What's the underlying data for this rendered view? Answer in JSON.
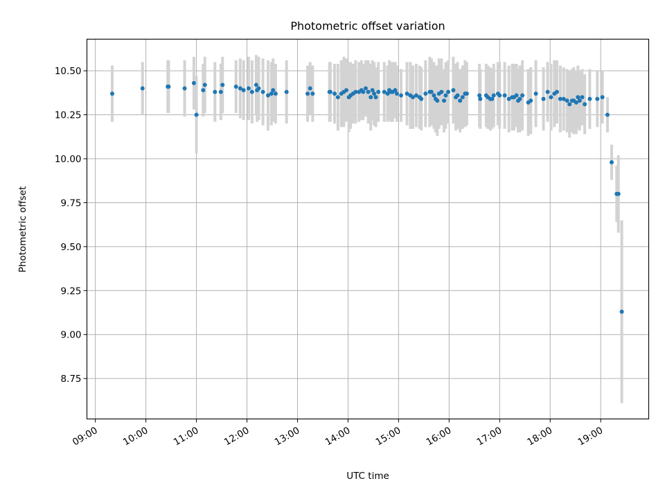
{
  "chart_data": {
    "type": "scatter",
    "title": "Photometric offset variation",
    "xlabel": "UTC time",
    "ylabel": "Photometric offset",
    "x_ticks": [
      "09:00",
      "10:00",
      "11:00",
      "12:00",
      "13:00",
      "14:00",
      "15:00",
      "16:00",
      "17:00",
      "18:00",
      "19:00"
    ],
    "y_ticks": [
      "8.75",
      "9.00",
      "9.25",
      "9.50",
      "9.75",
      "10.00",
      "10.25",
      "10.50"
    ],
    "xlim": [
      "08:50",
      "19:57"
    ],
    "ylim": [
      8.52,
      10.68
    ],
    "grid": true,
    "colors": {
      "point": "#1f77b4",
      "errorbar": "#d3d3d3"
    },
    "series": [
      {
        "x": [
          "09:20",
          "09:56",
          "10:26",
          "10:27",
          "10:46",
          "10:57",
          "11:00",
          "11:08",
          "11:10",
          "11:22",
          "11:29",
          "11:31",
          "11:47",
          "11:52",
          "11:56",
          "12:02",
          "12:06",
          "12:11",
          "12:12",
          "12:14",
          "12:19",
          "12:25",
          "12:29",
          "12:31",
          "12:34",
          "12:47",
          "13:12",
          "13:15",
          "13:18",
          "13:38",
          "13:39",
          "13:44",
          "13:48",
          "13:52",
          "13:55",
          "13:58",
          "14:01",
          "14:03",
          "14:06",
          "14:09",
          "14:13",
          "14:16",
          "14:18",
          "14:21",
          "14:24",
          "14:27",
          "14:29",
          "14:31",
          "14:33",
          "14:36",
          "14:43",
          "14:47",
          "14:49",
          "14:51",
          "14:53",
          "14:56",
          "14:58",
          "15:03",
          "15:10",
          "15:14",
          "15:17",
          "15:21",
          "15:25",
          "15:27",
          "15:32",
          "15:37",
          "15:39",
          "15:42",
          "15:44",
          "15:46",
          "15:48",
          "15:51",
          "15:54",
          "15:56",
          "15:59",
          "16:05",
          "16:08",
          "16:10",
          "16:13",
          "16:16",
          "16:19",
          "16:21",
          "16:36",
          "16:37",
          "16:44",
          "16:46",
          "16:49",
          "16:51",
          "16:53",
          "16:58",
          "17:00",
          "17:06",
          "17:11",
          "17:15",
          "17:17",
          "17:20",
          "17:22",
          "17:24",
          "17:27",
          "17:34",
          "17:37",
          "17:43",
          "17:52",
          "17:57",
          "18:01",
          "18:05",
          "18:08",
          "18:12",
          "18:16",
          "18:20",
          "18:23",
          "18:26",
          "18:28",
          "18:31",
          "18:33",
          "18:35",
          "18:38",
          "18:41",
          "18:47",
          "18:56",
          "19:02",
          "19:08",
          "19:13",
          "19:19",
          "19:21",
          "19:25"
        ],
        "y": [
          10.37,
          10.4,
          10.41,
          10.41,
          10.4,
          10.43,
          10.25,
          10.39,
          10.42,
          10.38,
          10.38,
          10.42,
          10.41,
          10.4,
          10.39,
          10.4,
          10.38,
          10.42,
          10.39,
          10.4,
          10.38,
          10.36,
          10.37,
          10.39,
          10.37,
          10.38,
          10.37,
          10.4,
          10.37,
          10.38,
          10.38,
          10.37,
          10.35,
          10.37,
          10.38,
          10.39,
          10.35,
          10.36,
          10.37,
          10.38,
          10.38,
          10.39,
          10.38,
          10.4,
          10.38,
          10.35,
          10.39,
          10.37,
          10.35,
          10.38,
          10.38,
          10.37,
          10.39,
          10.38,
          10.38,
          10.39,
          10.37,
          10.36,
          10.37,
          10.36,
          10.35,
          10.36,
          10.35,
          10.34,
          10.37,
          10.38,
          10.38,
          10.36,
          10.34,
          10.33,
          10.37,
          10.38,
          10.33,
          10.36,
          10.38,
          10.39,
          10.35,
          10.36,
          10.33,
          10.35,
          10.37,
          10.37,
          10.36,
          10.34,
          10.36,
          10.35,
          10.34,
          10.34,
          10.36,
          10.37,
          10.36,
          10.36,
          10.34,
          10.35,
          10.35,
          10.36,
          10.33,
          10.34,
          10.36,
          10.32,
          10.33,
          10.37,
          10.34,
          10.38,
          10.35,
          10.37,
          10.38,
          10.34,
          10.34,
          10.33,
          10.31,
          10.33,
          10.33,
          10.32,
          10.35,
          10.33,
          10.35,
          10.31,
          10.34,
          10.34,
          10.35,
          10.25,
          9.98,
          9.8,
          9.8,
          9.13
        ],
        "err": [
          0.16,
          0.15,
          0.15,
          0.15,
          0.16,
          0.15,
          0.22,
          0.15,
          0.16,
          0.17,
          0.16,
          0.16,
          0.15,
          0.17,
          0.17,
          0.18,
          0.18,
          0.17,
          0.18,
          0.18,
          0.19,
          0.2,
          0.18,
          0.18,
          0.17,
          0.18,
          0.16,
          0.15,
          0.16,
          0.17,
          0.17,
          0.17,
          0.19,
          0.19,
          0.2,
          0.18,
          0.2,
          0.19,
          0.17,
          0.18,
          0.17,
          0.17,
          0.16,
          0.16,
          0.18,
          0.19,
          0.17,
          0.18,
          0.17,
          0.17,
          0.17,
          0.16,
          0.17,
          0.17,
          0.17,
          0.16,
          0.16,
          0.15,
          0.18,
          0.19,
          0.18,
          0.18,
          0.18,
          0.18,
          0.19,
          0.2,
          0.19,
          0.19,
          0.19,
          0.2,
          0.2,
          0.19,
          0.18,
          0.19,
          0.18,
          0.19,
          0.19,
          0.19,
          0.18,
          0.18,
          0.19,
          0.18,
          0.18,
          0.17,
          0.18,
          0.18,
          0.18,
          0.17,
          0.18,
          0.18,
          0.19,
          0.19,
          0.19,
          0.19,
          0.19,
          0.18,
          0.18,
          0.19,
          0.2,
          0.19,
          0.19,
          0.19,
          0.18,
          0.17,
          0.19,
          0.19,
          0.18,
          0.19,
          0.18,
          0.18,
          0.19,
          0.18,
          0.19,
          0.18,
          0.18,
          0.17,
          0.16,
          0.17,
          0.17,
          0.16,
          0.15,
          0.1,
          0.1,
          0.16,
          0.22,
          0.52
        ]
      }
    ]
  }
}
